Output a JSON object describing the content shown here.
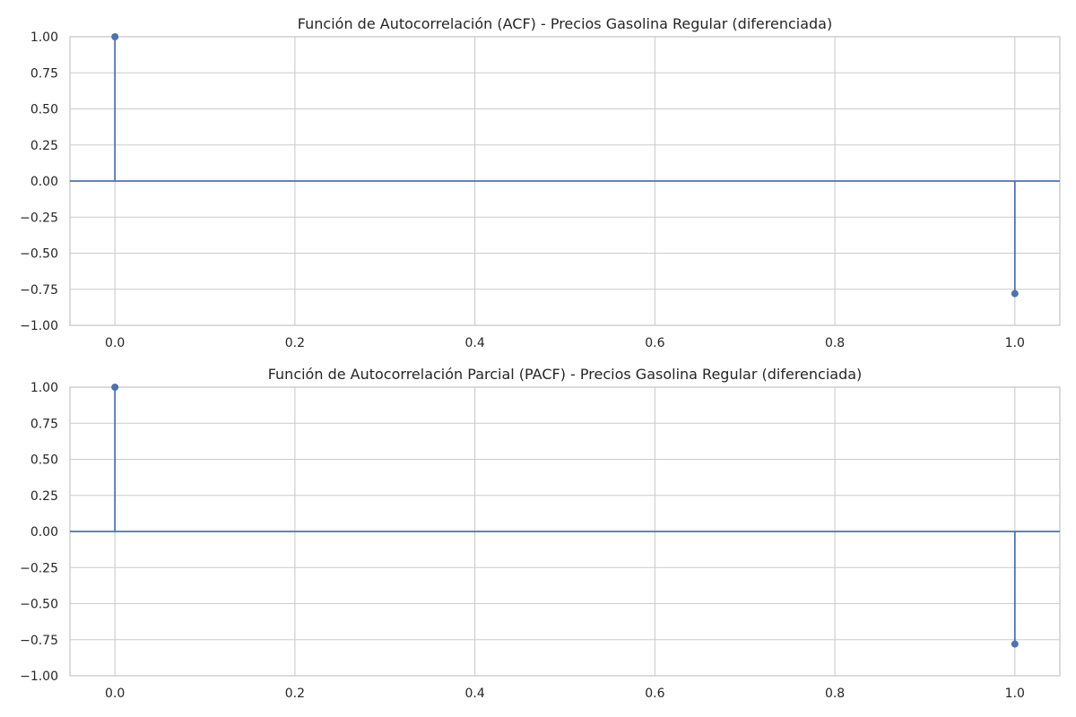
{
  "chart_data": [
    {
      "type": "stem",
      "title": "Función de Autocorrelación (ACF) - Precios Gasolina Regular (diferenciada)",
      "x": [
        0,
        1
      ],
      "values": [
        1.0,
        -0.78
      ],
      "xlim": [
        -0.05,
        1.05
      ],
      "ylim": [
        -1.0,
        1.0
      ],
      "xticks": [
        "0.0",
        "0.2",
        "0.4",
        "0.6",
        "0.8",
        "1.0"
      ],
      "yticks": [
        "1.00",
        "0.75",
        "0.50",
        "0.25",
        "0.00",
        "−0.25",
        "−0.50",
        "−0.75",
        "−1.00"
      ],
      "grid": true,
      "color": "#4c72b0"
    },
    {
      "type": "stem",
      "title": "Función de Autocorrelación Parcial (PACF) - Precios Gasolina Regular (diferenciada)",
      "x": [
        0,
        1
      ],
      "values": [
        1.0,
        -0.78
      ],
      "xlim": [
        -0.05,
        1.05
      ],
      "ylim": [
        -1.0,
        1.0
      ],
      "xticks": [
        "0.0",
        "0.2",
        "0.4",
        "0.6",
        "0.8",
        "1.0"
      ],
      "yticks": [
        "1.00",
        "0.75",
        "0.50",
        "0.25",
        "0.00",
        "−0.25",
        "−0.50",
        "−0.75",
        "−1.00"
      ],
      "grid": true,
      "color": "#4c72b0"
    }
  ]
}
